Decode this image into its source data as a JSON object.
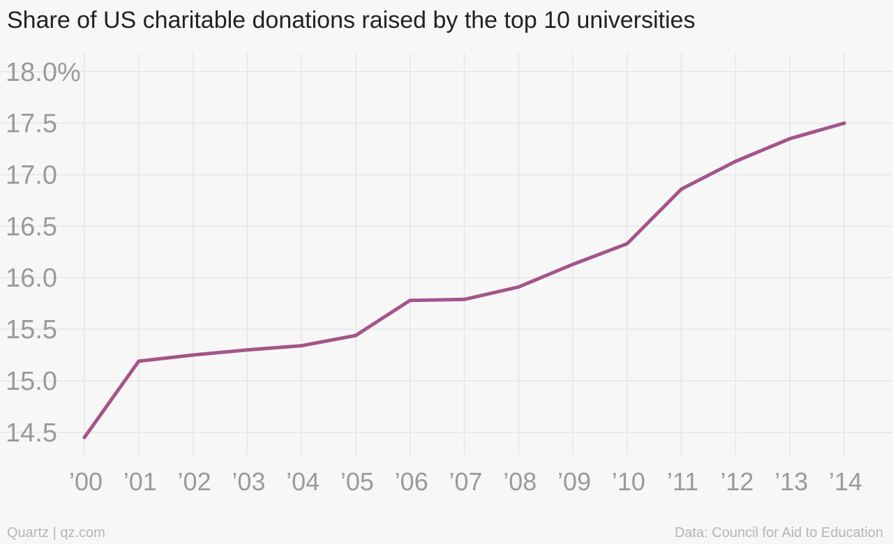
{
  "chart_data": {
    "type": "line",
    "title": "Share of US charitable donations raised by the top 10 universities",
    "x": [
      "’00",
      "’01",
      "’02",
      "’03",
      "’04",
      "’05",
      "’06",
      "’07",
      "’08",
      "’09",
      "’10",
      "’11",
      "’12",
      "’13",
      "’14"
    ],
    "series": [
      {
        "values": [
          14.45,
          15.19,
          15.25,
          15.3,
          15.34,
          15.44,
          15.78,
          15.79,
          15.91,
          16.13,
          16.33,
          16.86,
          17.13,
          17.35,
          17.5
        ]
      }
    ],
    "ylim": [
      14.35,
      18.1
    ],
    "yticks": [
      14.5,
      15.0,
      15.5,
      16.0,
      16.5,
      17.0,
      17.5,
      18.0
    ],
    "ytick_labels": [
      "14.5",
      "15.0",
      "15.5",
      "16.0",
      "16.5",
      "17.0",
      "17.5",
      "18.0%"
    ],
    "grid": true,
    "line_color": "#a4548a",
    "grid_color": "#e6e6e6"
  },
  "footer": {
    "credit": "Quartz | qz.com",
    "source": "Data: Council for Aid to Education"
  }
}
